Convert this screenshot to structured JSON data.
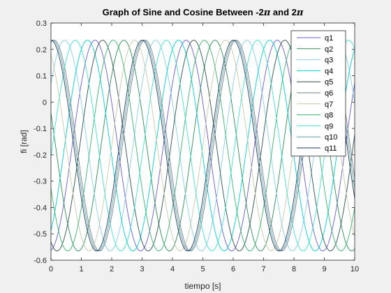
{
  "chart_data": {
    "type": "line",
    "title": "Graph of Sine and Cosine Between -2π and 2π",
    "xlabel": "tiempo [s]",
    "ylabel": "fi [rad]",
    "xlim": [
      0,
      10
    ],
    "ylim": [
      -0.6,
      0.3
    ],
    "xticks": [
      "0",
      "1",
      "2",
      "3",
      "4",
      "5",
      "6",
      "7",
      "8",
      "9",
      "10"
    ],
    "yticks": [
      "-0.6",
      "-0.5",
      "-0.4",
      "-0.3",
      "-0.2",
      "-0.1",
      "0",
      "0.1",
      "0.2",
      "0.3"
    ],
    "grid": false,
    "legend_position": "top-right",
    "series": [
      {
        "name": "q1",
        "color": "#6a5acd",
        "wave": {
          "center": -0.165,
          "amplitude": 0.4,
          "period": 3.0,
          "peak_x": 1.45
        }
      },
      {
        "name": "q2",
        "color": "#2e8b57",
        "wave": {
          "center": -0.165,
          "amplitude": 0.4,
          "period": 3.0,
          "peak_x": 2.4
        }
      },
      {
        "name": "q3",
        "color": "#87ceeb",
        "wave": {
          "center": -0.165,
          "amplitude": 0.4,
          "period": 3.0,
          "peak_x": 0.45
        }
      },
      {
        "name": "q4",
        "color": "#00ced1",
        "wave": {
          "center": -0.165,
          "amplitude": 0.4,
          "period": 3.0,
          "peak_x": 1.2
        }
      },
      {
        "name": "q5",
        "color": "#2f4f4f",
        "wave": {
          "center": -0.165,
          "amplitude": 0.4,
          "period": 3.0,
          "peak_x": 1.7
        }
      },
      {
        "name": "q6",
        "color": "#708090",
        "wave": {
          "center": -0.165,
          "amplitude": 0.4,
          "period": 3.0,
          "peak_x": 0.1
        }
      },
      {
        "name": "q7",
        "color": "#c8c8a9",
        "wave": {
          "center": -0.165,
          "amplitude": 0.4,
          "period": 3.0,
          "peak_x": 2.75
        }
      },
      {
        "name": "q8",
        "color": "#3cb371",
        "wave": {
          "center": -0.165,
          "amplitude": 0.4,
          "period": 3.0,
          "peak_x": 2.05
        }
      },
      {
        "name": "q9",
        "color": "#40e0d0",
        "wave": {
          "center": -0.165,
          "amplitude": 0.4,
          "period": 3.0,
          "peak_x": 0.8
        }
      },
      {
        "name": "q10",
        "color": "#5f9ea0",
        "wave": {
          "center": -0.165,
          "amplitude": 0.4,
          "period": 3.0,
          "peak_x": 3.05
        }
      },
      {
        "name": "q11",
        "color": "#1f3a5f",
        "wave": {
          "center": -0.165,
          "amplitude": 0.4,
          "period": 3.0,
          "peak_x": 0.0
        }
      }
    ]
  }
}
